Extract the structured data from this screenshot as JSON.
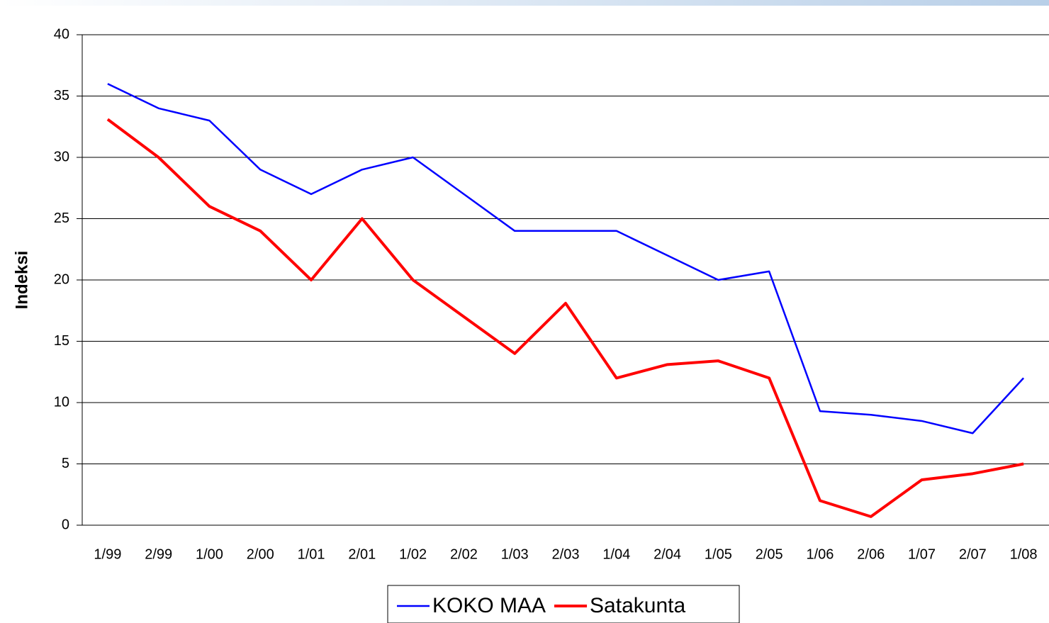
{
  "chart_data": {
    "type": "line",
    "y_label": "Indeksi",
    "categories": [
      "1/99",
      "2/99",
      "1/00",
      "2/00",
      "1/01",
      "2/01",
      "1/02",
      "2/02",
      "1/03",
      "2/03",
      "1/04",
      "2/04",
      "1/05",
      "2/05",
      "1/06",
      "2/06",
      "1/07",
      "2/07",
      "1/08"
    ],
    "series": [
      {
        "name": "KOKO MAA",
        "color": "#0000ff",
        "values": [
          36,
          34,
          33,
          29,
          27,
          29,
          30,
          27,
          24,
          24,
          24,
          22,
          20,
          20.7,
          9.3,
          9,
          8.5,
          7.5,
          12
        ]
      },
      {
        "name": "Satakunta",
        "color": "#ff0000",
        "values": [
          33.1,
          30,
          26,
          24,
          20,
          25,
          20,
          17,
          14,
          18.1,
          12,
          13.1,
          13.4,
          12,
          2,
          0.7,
          3.7,
          4.2,
          5
        ]
      }
    ],
    "ylim": [
      0,
      40
    ],
    "yticks": [
      0,
      5,
      10,
      15,
      20,
      25,
      30,
      35,
      40
    ],
    "grid": true,
    "legend": "bottom"
  }
}
